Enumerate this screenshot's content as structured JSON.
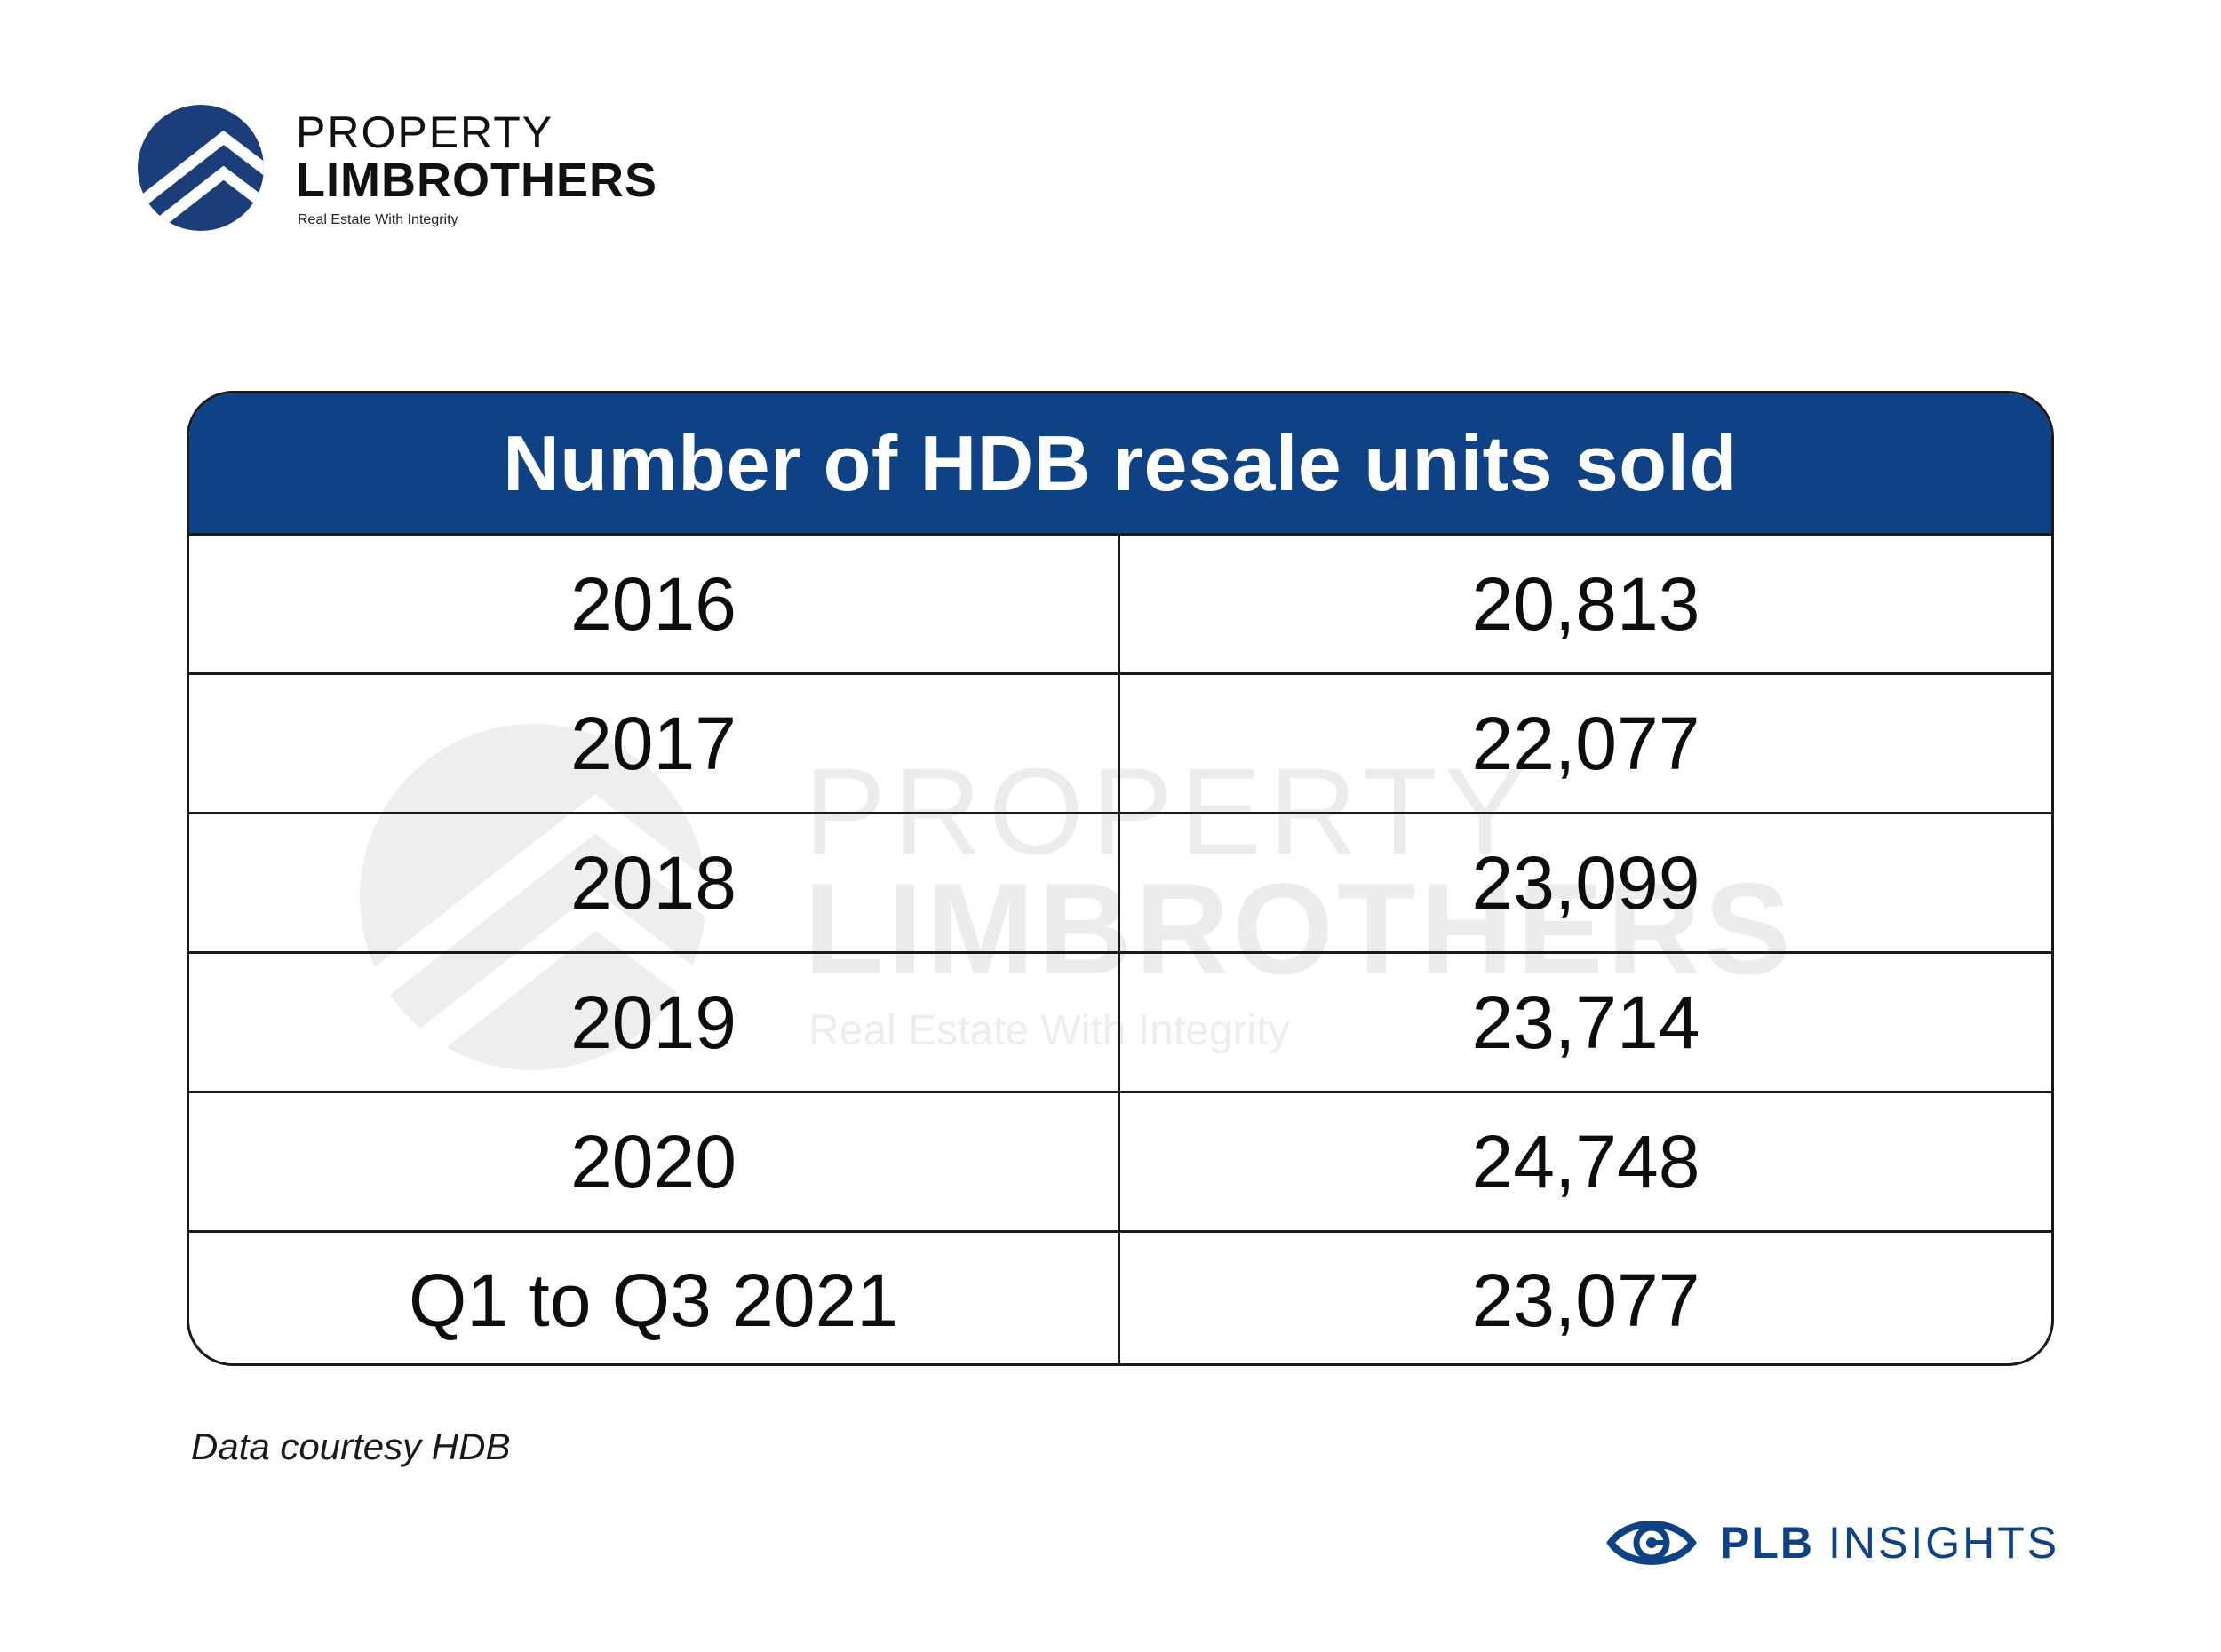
{
  "brand": {
    "line1": "PROPERTY",
    "line2": "LIMBROTHERS",
    "tagline": "Real Estate With Integrity",
    "color": "#1b3d7a"
  },
  "watermark": {
    "line1": "PROPERTY",
    "line2": "LIMBROTHERS",
    "tagline": "Real Estate With Integrity"
  },
  "chart_data": {
    "type": "table",
    "title": "Number of HDB resale units sold",
    "header_color": "#0f4285",
    "rows": [
      {
        "label": "2016",
        "value": "20,813"
      },
      {
        "label": "2017",
        "value": "22,077"
      },
      {
        "label": "2018",
        "value": "23,099"
      },
      {
        "label": "2019",
        "value": "23,714"
      },
      {
        "label": "2020",
        "value": "24,748"
      },
      {
        "label": "Q1 to Q3 2021",
        "value": "23,077"
      }
    ]
  },
  "footer": {
    "source_note": "Data courtesy HDB",
    "insights_bold": "PLB",
    "insights_regular": "INSIGHTS",
    "insights_icon": "eye-icon",
    "insights_color": "#0f4285"
  }
}
